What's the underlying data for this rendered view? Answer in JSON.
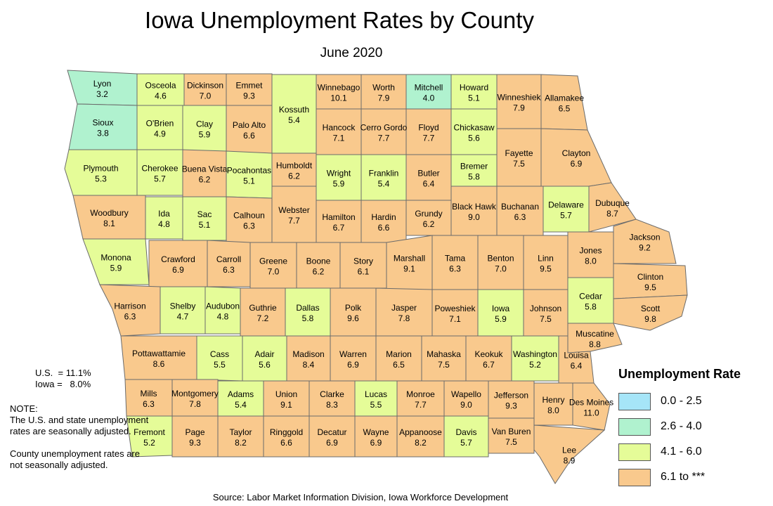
{
  "title": "Iowa Unemployment Rates by County",
  "subtitle": "June 2020",
  "stats": {
    "us": "U.S.  = 11.1%",
    "iowa": "Iowa =   8.0%"
  },
  "note": {
    "heading": "NOTE:",
    "line1": "The U.S. and state unemployment rates are seasonally adjusted.",
    "line2": "County unemployment rates are not seasonally adjusted."
  },
  "source": "Source: Labor Market Information Division, Iowa Workforce Development",
  "legend": {
    "title": "Unemployment Rate",
    "items": [
      {
        "label": "0.0 - 2.5",
        "color": "#a6e5f8"
      },
      {
        "label": "2.6 - 4.0",
        "color": "#b0f2cf"
      },
      {
        "label": "4.1 - 6.0",
        "color": "#e5fc98"
      },
      {
        "label": "6.1 to ***",
        "color": "#f9c98d"
      }
    ]
  },
  "counties": [
    {
      "name": "Lyon",
      "rate": "3.2"
    },
    {
      "name": "Osceola",
      "rate": "4.6"
    },
    {
      "name": "Dickinson",
      "rate": "7.0"
    },
    {
      "name": "Emmet",
      "rate": "9.3"
    },
    {
      "name": "Kossuth",
      "rate": "5.4"
    },
    {
      "name": "Winnebago",
      "rate": "10.1"
    },
    {
      "name": "Worth",
      "rate": "7.9"
    },
    {
      "name": "Mitchell",
      "rate": "4.0"
    },
    {
      "name": "Howard",
      "rate": "5.1"
    },
    {
      "name": "Winneshiek",
      "rate": "7.9"
    },
    {
      "name": "Allamakee",
      "rate": "6.5"
    },
    {
      "name": "Sioux",
      "rate": "3.8"
    },
    {
      "name": "O'Brien",
      "rate": "4.9"
    },
    {
      "name": "Clay",
      "rate": "5.9"
    },
    {
      "name": "Palo Alto",
      "rate": "6.6"
    },
    {
      "name": "Hancock",
      "rate": "7.1"
    },
    {
      "name": "Cerro Gordo",
      "rate": "7.7"
    },
    {
      "name": "Floyd",
      "rate": "7.7"
    },
    {
      "name": "Chickasaw",
      "rate": "5.6"
    },
    {
      "name": "Fayette",
      "rate": "7.5"
    },
    {
      "name": "Clayton",
      "rate": "6.9"
    },
    {
      "name": "Plymouth",
      "rate": "5.3"
    },
    {
      "name": "Cherokee",
      "rate": "5.7"
    },
    {
      "name": "Buena Vista",
      "rate": "6.2"
    },
    {
      "name": "Pocahontas",
      "rate": "5.1"
    },
    {
      "name": "Humboldt",
      "rate": "6.2"
    },
    {
      "name": "Wright",
      "rate": "5.9"
    },
    {
      "name": "Franklin",
      "rate": "5.4"
    },
    {
      "name": "Butler",
      "rate": "6.4"
    },
    {
      "name": "Bremer",
      "rate": "5.8"
    },
    {
      "name": "Woodbury",
      "rate": "8.1"
    },
    {
      "name": "Ida",
      "rate": "4.8"
    },
    {
      "name": "Sac",
      "rate": "5.1"
    },
    {
      "name": "Calhoun",
      "rate": "6.3"
    },
    {
      "name": "Webster",
      "rate": "7.7"
    },
    {
      "name": "Hamilton",
      "rate": "6.7"
    },
    {
      "name": "Hardin",
      "rate": "6.6"
    },
    {
      "name": "Grundy",
      "rate": "6.2"
    },
    {
      "name": "Black Hawk",
      "rate": "9.0"
    },
    {
      "name": "Buchanan",
      "rate": "6.3"
    },
    {
      "name": "Delaware",
      "rate": "5.7"
    },
    {
      "name": "Dubuque",
      "rate": "8.7"
    },
    {
      "name": "Monona",
      "rate": "5.9"
    },
    {
      "name": "Crawford",
      "rate": "6.9"
    },
    {
      "name": "Carroll",
      "rate": "6.3"
    },
    {
      "name": "Greene",
      "rate": "7.0"
    },
    {
      "name": "Boone",
      "rate": "6.2"
    },
    {
      "name": "Story",
      "rate": "6.1"
    },
    {
      "name": "Marshall",
      "rate": "9.1"
    },
    {
      "name": "Tama",
      "rate": "6.3"
    },
    {
      "name": "Benton",
      "rate": "7.0"
    },
    {
      "name": "Linn",
      "rate": "9.5"
    },
    {
      "name": "Jones",
      "rate": "8.0"
    },
    {
      "name": "Jackson",
      "rate": "9.2"
    },
    {
      "name": "Clinton",
      "rate": "9.5"
    },
    {
      "name": "Harrison",
      "rate": "6.3"
    },
    {
      "name": "Shelby",
      "rate": "4.7"
    },
    {
      "name": "Audubon",
      "rate": "4.8"
    },
    {
      "name": "Guthrie",
      "rate": "7.2"
    },
    {
      "name": "Dallas",
      "rate": "5.8"
    },
    {
      "name": "Polk",
      "rate": "9.6"
    },
    {
      "name": "Jasper",
      "rate": "7.8"
    },
    {
      "name": "Poweshiek",
      "rate": "7.1"
    },
    {
      "name": "Iowa",
      "rate": "5.9"
    },
    {
      "name": "Johnson",
      "rate": "7.5"
    },
    {
      "name": "Cedar",
      "rate": "5.8"
    },
    {
      "name": "Scott",
      "rate": "9.8"
    },
    {
      "name": "Muscatine",
      "rate": "8.8"
    },
    {
      "name": "Pottawattamie",
      "rate": "8.6"
    },
    {
      "name": "Cass",
      "rate": "5.5"
    },
    {
      "name": "Adair",
      "rate": "5.6"
    },
    {
      "name": "Madison",
      "rate": "8.4"
    },
    {
      "name": "Warren",
      "rate": "6.9"
    },
    {
      "name": "Marion",
      "rate": "6.5"
    },
    {
      "name": "Mahaska",
      "rate": "7.5"
    },
    {
      "name": "Keokuk",
      "rate": "6.7"
    },
    {
      "name": "Washington",
      "rate": "5.2"
    },
    {
      "name": "Louisa",
      "rate": "6.4"
    },
    {
      "name": "Mills",
      "rate": "6.3"
    },
    {
      "name": "Montgomery",
      "rate": "7.8"
    },
    {
      "name": "Adams",
      "rate": "5.4"
    },
    {
      "name": "Union",
      "rate": "9.1"
    },
    {
      "name": "Clarke",
      "rate": "8.3"
    },
    {
      "name": "Lucas",
      "rate": "5.5"
    },
    {
      "name": "Monroe",
      "rate": "7.7"
    },
    {
      "name": "Wapello",
      "rate": "9.0"
    },
    {
      "name": "Jefferson",
      "rate": "9.3"
    },
    {
      "name": "Henry",
      "rate": "8.0"
    },
    {
      "name": "Des Moines",
      "rate": "11.0"
    },
    {
      "name": "Fremont",
      "rate": "5.2"
    },
    {
      "name": "Page",
      "rate": "9.3"
    },
    {
      "name": "Taylor",
      "rate": "8.2"
    },
    {
      "name": "Ringgold",
      "rate": "6.6"
    },
    {
      "name": "Decatur",
      "rate": "6.9"
    },
    {
      "name": "Wayne",
      "rate": "6.9"
    },
    {
      "name": "Appanoose",
      "rate": "8.2"
    },
    {
      "name": "Davis",
      "rate": "5.7"
    },
    {
      "name": "Van Buren",
      "rate": "7.5"
    },
    {
      "name": "Lee",
      "rate": "8.9"
    }
  ]
}
